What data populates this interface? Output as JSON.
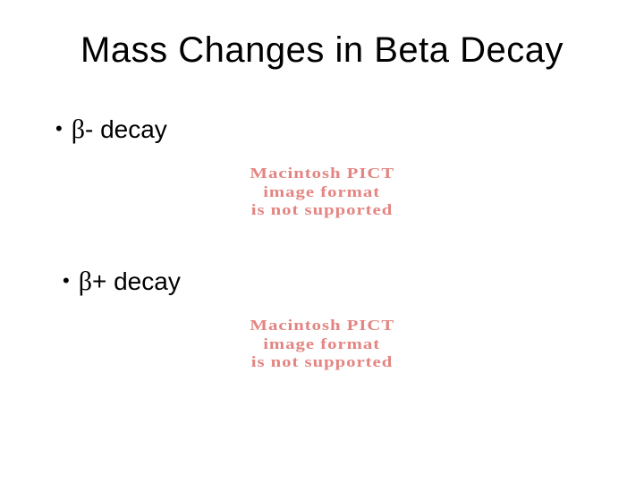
{
  "slide": {
    "title": "Mass Changes in Beta Decay",
    "bullet1": {
      "dot": "•",
      "beta": "β",
      "rest": "- decay"
    },
    "bullet2": {
      "dot": "•",
      "beta": "β",
      "rest": "+ decay"
    },
    "pict": {
      "line1": "Macintosh PICT",
      "line2": "image format",
      "line3": "is not supported",
      "color": "#e38582"
    }
  },
  "colors": {
    "background": "#ffffff",
    "text": "#000000"
  }
}
